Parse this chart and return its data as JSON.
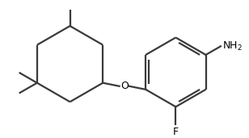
{
  "background_color": "#ffffff",
  "line_color": "#3a3a3a",
  "text_color": "#000000",
  "line_width": 1.6,
  "font_size": 9,
  "fig_width": 3.08,
  "fig_height": 1.71,
  "dpi": 100
}
